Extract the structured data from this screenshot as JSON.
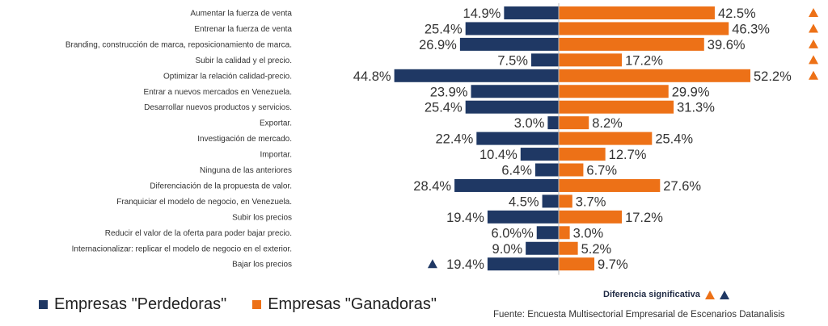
{
  "chart_data": {
    "type": "bar",
    "orientation": "horizontal-diverging",
    "categories": [
      "Aumentar la fuerza de venta",
      "Entrenar la fuerza de venta",
      "Branding, construcción de marca, reposicionamiento de marca.",
      "Subir la calidad y el precio.",
      "Optimizar la relación calidad-precio.",
      "Entrar a nuevos mercados en Venezuela.",
      "Desarrollar nuevos productos y servicios.",
      "Exportar.",
      "Investigación de mercado.",
      "Importar.",
      "Ninguna de las anteriores",
      "Diferenciación de la propuesta de valor.",
      "Franquiciar el modelo de negocio, en Venezuela.",
      "Subir los precios",
      "Reducir el valor de la oferta para poder bajar precio.",
      "Internacionalizar: replicar el modelo de negocio en el exterior.",
      "Bajar los precios"
    ],
    "series": [
      {
        "name": "Empresas \"Perdedoras\"",
        "color": "#1f3864",
        "values": [
          14.9,
          25.4,
          26.9,
          7.5,
          44.8,
          23.9,
          25.4,
          3.0,
          22.4,
          10.4,
          6.4,
          28.4,
          4.5,
          19.4,
          6.0,
          9.0,
          19.4
        ],
        "labels": [
          "14.9%",
          "25.4%",
          "26.9%",
          "7.5%",
          "44.8%",
          "23.9%",
          "25.4%",
          "3.0%",
          "22.4%",
          "10.4%",
          "6.4%",
          "28.4%",
          "4.5%",
          "19.4%",
          "6.0%%",
          "9.0%",
          "19.4%"
        ],
        "significant": [
          false,
          false,
          false,
          false,
          false,
          false,
          false,
          false,
          false,
          false,
          false,
          false,
          false,
          false,
          false,
          false,
          true
        ]
      },
      {
        "name": "Empresas \"Ganadoras\"",
        "color": "#ed7117",
        "values": [
          42.5,
          46.3,
          39.6,
          17.2,
          52.2,
          29.9,
          31.3,
          8.2,
          25.4,
          12.7,
          6.7,
          27.6,
          3.7,
          17.2,
          3.0,
          5.2,
          9.7
        ],
        "labels": [
          "42.5%",
          "46.3%",
          "39.6%",
          "17.2%",
          "52.2%",
          "29.9%",
          "31.3%",
          "8.2%",
          "25.4%",
          "12.7%",
          "6.7%",
          "27.6%",
          "3.7%",
          "17.2%",
          "3.0%",
          "5.2%",
          "9.7%"
        ],
        "significant": [
          true,
          true,
          true,
          true,
          true,
          false,
          false,
          false,
          false,
          false,
          false,
          false,
          false,
          false,
          false,
          false,
          false
        ]
      }
    ],
    "xlim": [
      -55,
      55
    ],
    "significance_legend": "Diferencia significativa",
    "source": "Fuente: Encuesta Multisectorial Empresarial de Escenarios Datanalisis"
  }
}
